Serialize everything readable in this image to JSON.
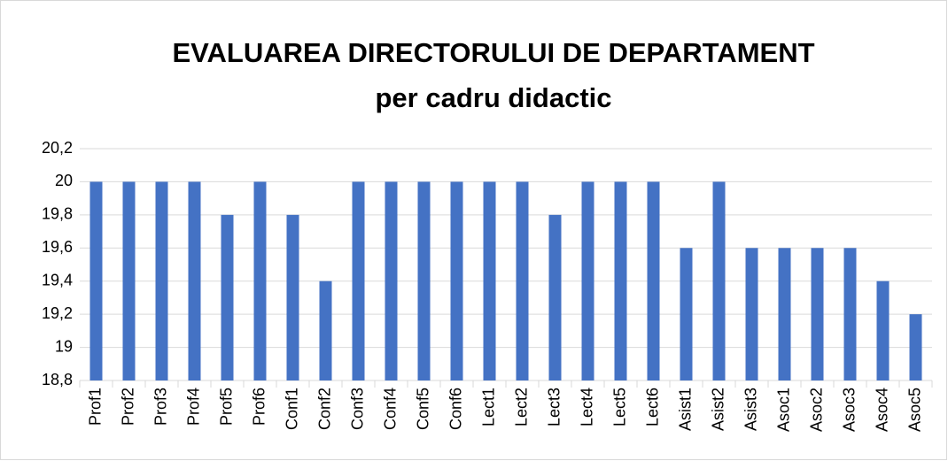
{
  "chart_data": {
    "type": "bar",
    "title": "EVALUAREA DIRECTORULUI DE DEPARTAMENT",
    "subtitle": "per cadru didactic",
    "categories": [
      "Prof1",
      "Prof2",
      "Prof3",
      "Prof4",
      "Prof5",
      "Prof6",
      "Conf1",
      "Conf2",
      "Conf3",
      "Conf4",
      "Conf5",
      "Conf6",
      "Lect1",
      "Lect2",
      "Lect3",
      "Lect4",
      "Lect5",
      "Lect6",
      "Asist1",
      "Asist2",
      "Asist3",
      "Asoc1",
      "Asoc2",
      "Asoc3",
      "Asoc4",
      "Asoc5"
    ],
    "values": [
      20,
      20,
      20,
      20,
      19.8,
      20,
      19.8,
      19.4,
      20,
      20,
      20,
      20,
      20,
      20,
      19.8,
      20,
      20,
      20,
      19.6,
      20,
      19.6,
      19.6,
      19.6,
      19.6,
      19.4,
      19.2
    ],
    "color": "#4472c4",
    "ylim": [
      18.8,
      20.2
    ],
    "yticks": [
      {
        "value": 18.8,
        "label": "18,8"
      },
      19,
      {
        "value": 19.2,
        "label": "19,2"
      },
      {
        "value": 19.4,
        "label": "19,4"
      },
      {
        "value": 19.6,
        "label": "19,6"
      },
      {
        "value": 19.8,
        "label": "19,8"
      },
      20,
      {
        "value": 20.2,
        "label": "20,2"
      }
    ],
    "grid": true
  }
}
